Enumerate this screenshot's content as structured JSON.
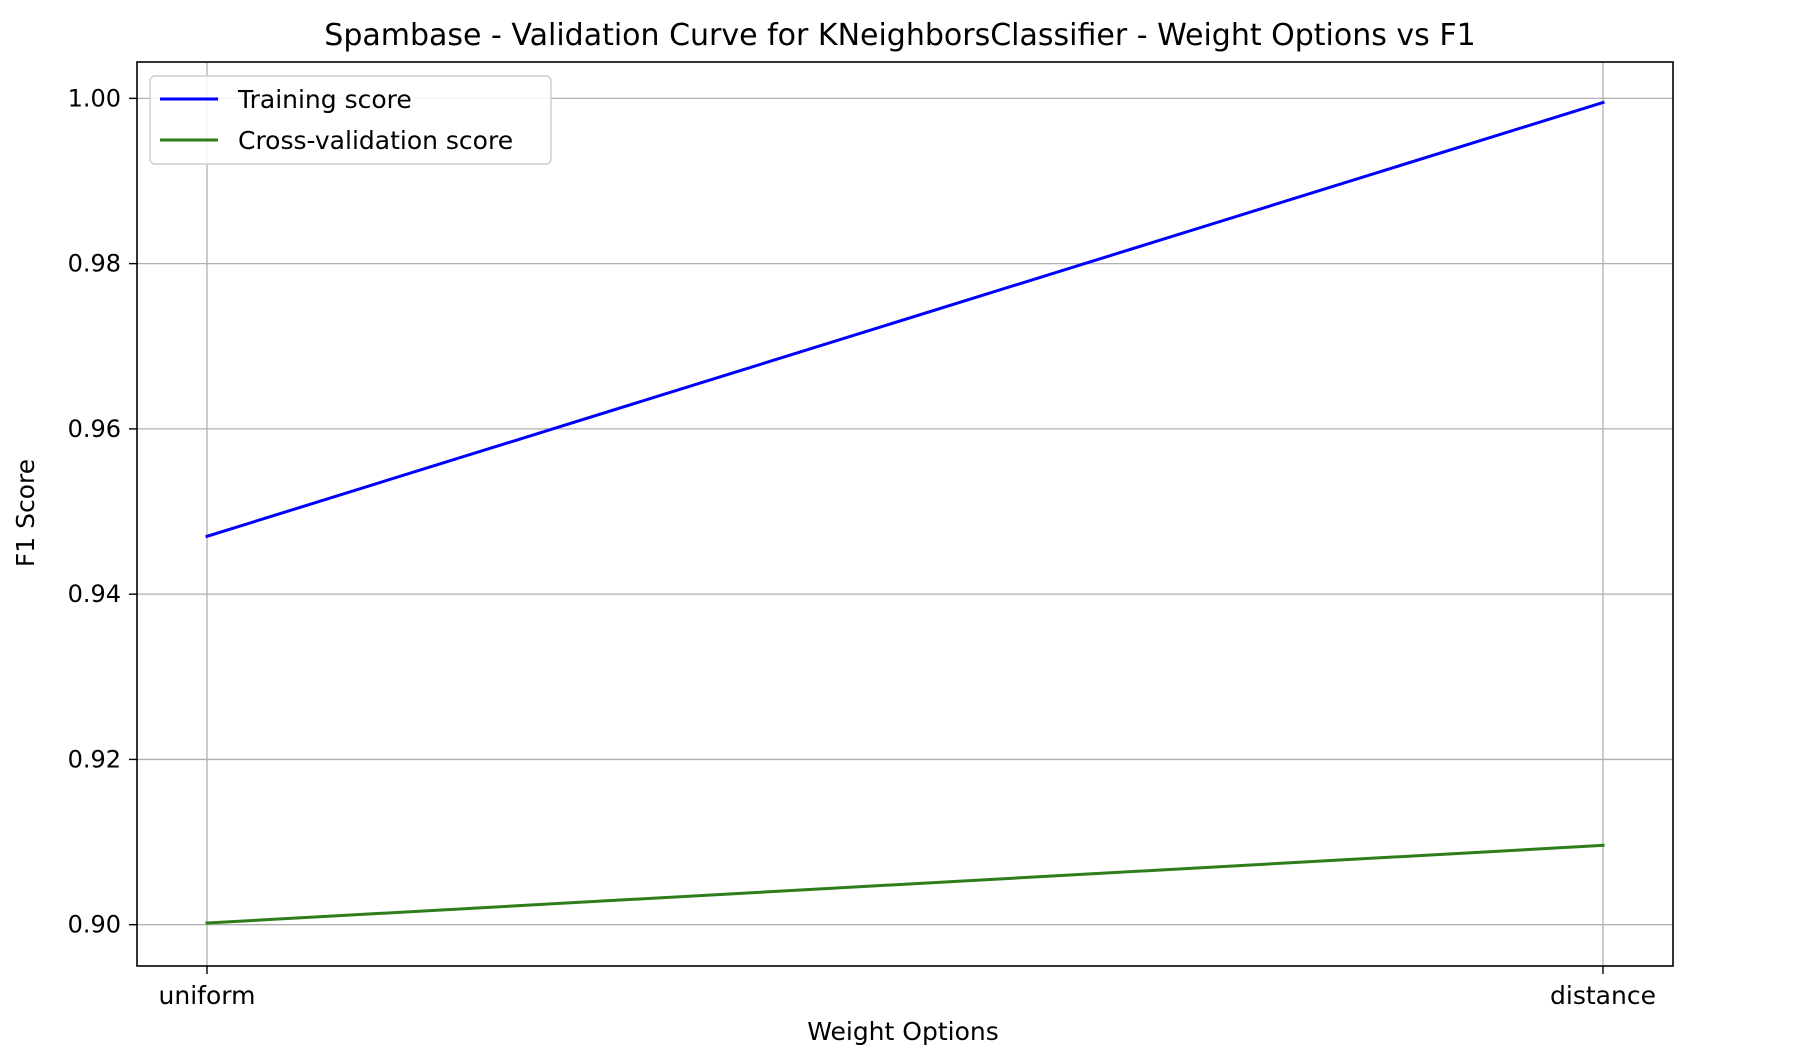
{
  "chart_data": {
    "type": "line",
    "title": "Spambase - Validation Curve for KNeighborsClassifier - Weight Options vs F1",
    "xlabel": "Weight Options",
    "ylabel": "F1 Score",
    "categories": [
      "uniform",
      "distance"
    ],
    "series": [
      {
        "name": "Training score",
        "values": [
          0.947,
          0.9995
        ],
        "color": "#0000ff"
      },
      {
        "name": "Cross-validation score",
        "values": [
          0.9002,
          0.9096
        ],
        "color": "#2e7d1a"
      }
    ],
    "ylim": [
      0.895,
      1.0044
    ],
    "yticks": [
      0.9,
      0.92,
      0.94,
      0.96,
      0.98,
      1.0
    ],
    "ytick_labels": [
      "0.90",
      "0.92",
      "0.94",
      "0.96",
      "0.98",
      "1.00"
    ],
    "grid": true,
    "legend_position": "top-left"
  }
}
